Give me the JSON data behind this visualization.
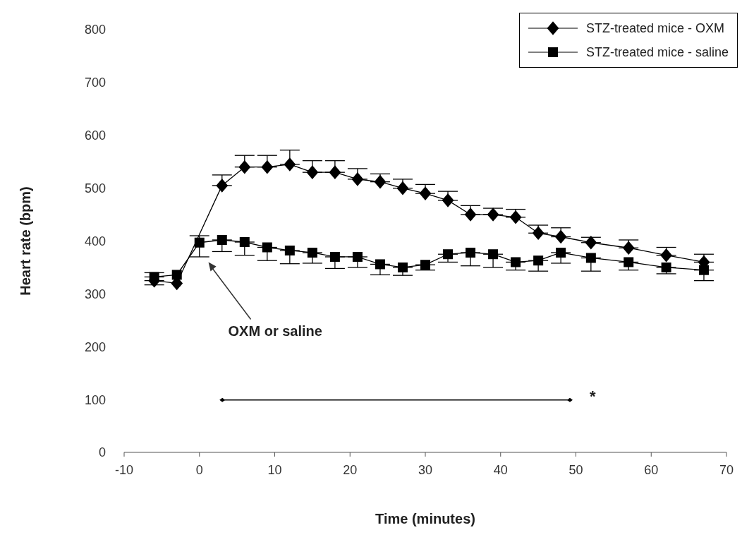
{
  "chart_data": {
    "type": "line",
    "xlabel": "Time (minutes)",
    "ylabel": "Heart rate (bpm)",
    "x": [
      -6,
      -3,
      0,
      3,
      6,
      9,
      12,
      15,
      18,
      21,
      24,
      27,
      30,
      33,
      36,
      39,
      42,
      45,
      48,
      52,
      57,
      62,
      67
    ],
    "xlim": [
      -10,
      70
    ],
    "xticks": [
      -10,
      0,
      10,
      20,
      30,
      40,
      50,
      60,
      70
    ],
    "ylim": [
      0,
      800
    ],
    "yticks": [
      0,
      100,
      200,
      300,
      400,
      500,
      600,
      700,
      800
    ],
    "grid": false,
    "legend": "top right",
    "line_style": "solid",
    "series": [
      {
        "name": "STZ-treated mice - OXM",
        "color": "#000000",
        "marker": "diamond",
        "values": [
          325,
          320,
          null,
          505,
          540,
          540,
          545,
          530,
          530,
          517,
          512,
          500,
          490,
          477,
          450,
          450,
          445,
          415,
          408,
          397,
          387,
          373,
          360
        ],
        "errors": [
          [
            325,
            340
          ],
          null,
          null,
          [
            505,
            525
          ],
          [
            540,
            562
          ],
          [
            540,
            562
          ],
          [
            545,
            572
          ],
          [
            530,
            552
          ],
          [
            530,
            552
          ],
          [
            517,
            537
          ],
          [
            512,
            527
          ],
          [
            500,
            517
          ],
          [
            490,
            507
          ],
          [
            477,
            494
          ],
          [
            450,
            467
          ],
          [
            450,
            462
          ],
          [
            445,
            460
          ],
          [
            415,
            430
          ],
          [
            408,
            425
          ],
          [
            397,
            407
          ],
          [
            387,
            402
          ],
          [
            373,
            388
          ],
          [
            360,
            375
          ]
        ]
      },
      {
        "name": "STZ-treated mice - saline",
        "color": "#000000",
        "marker": "square",
        "values": [
          332,
          336,
          397,
          402,
          398,
          388,
          382,
          378,
          370,
          370,
          356,
          350,
          355,
          375,
          378,
          375,
          360,
          363,
          378,
          368,
          360,
          350,
          345
        ],
        "errors": [
          [
            317,
            332
          ],
          null,
          [
            370,
            410
          ],
          [
            380,
            402
          ],
          [
            373,
            398
          ],
          [
            363,
            388
          ],
          [
            357,
            382
          ],
          [
            358,
            378
          ],
          [
            348,
            370
          ],
          [
            350,
            370
          ],
          [
            336,
            356
          ],
          [
            335,
            350
          ],
          [
            345,
            355
          ],
          [
            360,
            375
          ],
          [
            353,
            378
          ],
          [
            350,
            375
          ],
          [
            345,
            360
          ],
          [
            343,
            363
          ],
          [
            358,
            378
          ],
          [
            343,
            368
          ],
          [
            345,
            360
          ],
          [
            338,
            350
          ],
          [
            325,
            345
          ]
        ]
      }
    ],
    "annotations": [
      "OXM or saline",
      "*"
    ]
  }
}
